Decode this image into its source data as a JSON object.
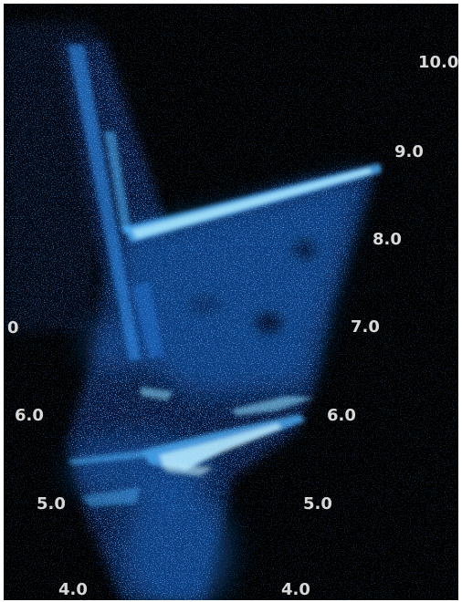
{
  "image": {
    "subject": "sonar scan",
    "background": "#000000",
    "echo_colors": [
      "#0a2a6e",
      "#1d6fd1",
      "#4fb6ff",
      "#a8ecff"
    ],
    "label_color": "#d9d9d9"
  },
  "left_scale": [
    "0",
    "6.0",
    "5.0",
    "4.0"
  ],
  "right_scale": [
    "10.0",
    "9.0",
    "8.0",
    "7.0",
    "6.0",
    "5.0",
    "4.0"
  ]
}
